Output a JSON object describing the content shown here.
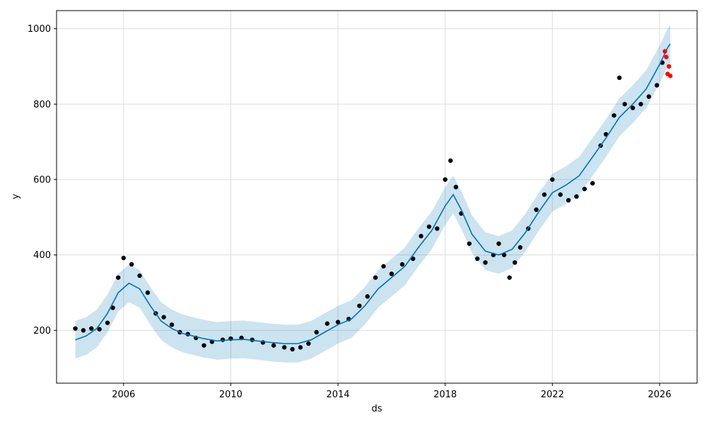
{
  "chart_data": {
    "type": "scatter",
    "title": "",
    "xlabel": "ds",
    "ylabel": "y",
    "grid": true,
    "xlim": [
      2003.5,
      2027.4
    ],
    "ylim": [
      60,
      1048
    ],
    "x_ticks": [
      2006,
      2010,
      2014,
      2018,
      2022,
      2026
    ],
    "x_tick_labels": [
      "2006",
      "2010",
      "2014",
      "2018",
      "2022",
      "2026"
    ],
    "y_ticks": [
      200,
      400,
      600,
      800,
      1000
    ],
    "y_tick_labels": [
      "200",
      "400",
      "600",
      "800",
      "1000"
    ],
    "colors": {
      "observed": "#000000",
      "holdout": "#ff0000",
      "forecast": "#0072b2",
      "interval": "#0072b2",
      "grid": "#dddddd"
    },
    "series": [
      {
        "kind": "observed_points",
        "points": [
          [
            2004.2,
            205
          ],
          [
            2004.5,
            200
          ],
          [
            2004.8,
            205
          ],
          [
            2005.1,
            203
          ],
          [
            2005.4,
            220
          ],
          [
            2005.6,
            260
          ],
          [
            2005.8,
            340
          ],
          [
            2006.0,
            392
          ],
          [
            2006.3,
            375
          ],
          [
            2006.6,
            345
          ],
          [
            2006.9,
            300
          ],
          [
            2007.2,
            245
          ],
          [
            2007.5,
            235
          ],
          [
            2007.8,
            215
          ],
          [
            2008.1,
            195
          ],
          [
            2008.4,
            190
          ],
          [
            2008.7,
            180
          ],
          [
            2009.0,
            160
          ],
          [
            2009.3,
            170
          ],
          [
            2009.7,
            175
          ],
          [
            2010.0,
            178
          ],
          [
            2010.4,
            180
          ],
          [
            2010.8,
            175
          ],
          [
            2011.2,
            168
          ],
          [
            2011.6,
            160
          ],
          [
            2012.0,
            155
          ],
          [
            2012.3,
            150
          ],
          [
            2012.6,
            155
          ],
          [
            2012.9,
            165
          ],
          [
            2013.2,
            195
          ],
          [
            2013.6,
            218
          ],
          [
            2014.0,
            222
          ],
          [
            2014.4,
            230
          ],
          [
            2014.8,
            265
          ],
          [
            2015.1,
            290
          ],
          [
            2015.4,
            340
          ],
          [
            2015.7,
            370
          ],
          [
            2016.0,
            350
          ],
          [
            2016.4,
            375
          ],
          [
            2016.8,
            390
          ],
          [
            2017.1,
            450
          ],
          [
            2017.4,
            475
          ],
          [
            2017.7,
            470
          ],
          [
            2018.0,
            600
          ],
          [
            2018.2,
            650
          ],
          [
            2018.4,
            580
          ],
          [
            2018.6,
            510
          ],
          [
            2018.9,
            430
          ],
          [
            2019.2,
            390
          ],
          [
            2019.5,
            380
          ],
          [
            2019.8,
            400
          ],
          [
            2020.0,
            430
          ],
          [
            2020.2,
            400
          ],
          [
            2020.4,
            340
          ],
          [
            2020.6,
            380
          ],
          [
            2020.8,
            420
          ],
          [
            2021.1,
            470
          ],
          [
            2021.4,
            520
          ],
          [
            2021.7,
            560
          ],
          [
            2022.0,
            600
          ],
          [
            2022.3,
            560
          ],
          [
            2022.6,
            545
          ],
          [
            2022.9,
            555
          ],
          [
            2023.2,
            575
          ],
          [
            2023.5,
            590
          ],
          [
            2023.8,
            690
          ],
          [
            2024.0,
            720
          ],
          [
            2024.3,
            770
          ],
          [
            2024.5,
            870
          ],
          [
            2024.7,
            800
          ],
          [
            2025.0,
            790
          ],
          [
            2025.3,
            800
          ],
          [
            2025.6,
            820
          ],
          [
            2025.9,
            850
          ],
          [
            2026.1,
            910
          ]
        ]
      },
      {
        "kind": "holdout_points",
        "points": [
          [
            2026.2,
            940
          ],
          [
            2026.25,
            925
          ],
          [
            2026.3,
            880
          ],
          [
            2026.35,
            900
          ],
          [
            2026.4,
            875
          ]
        ]
      },
      {
        "kind": "forecast_line",
        "points": [
          [
            2004.2,
            175
          ],
          [
            2004.6,
            185
          ],
          [
            2005.0,
            205
          ],
          [
            2005.4,
            245
          ],
          [
            2005.8,
            300
          ],
          [
            2006.2,
            325
          ],
          [
            2006.6,
            310
          ],
          [
            2007.0,
            265
          ],
          [
            2007.4,
            225
          ],
          [
            2007.8,
            205
          ],
          [
            2008.2,
            192
          ],
          [
            2008.6,
            185
          ],
          [
            2009.0,
            178
          ],
          [
            2009.5,
            172
          ],
          [
            2010.0,
            175
          ],
          [
            2010.5,
            176
          ],
          [
            2011.0,
            172
          ],
          [
            2011.5,
            168
          ],
          [
            2012.0,
            165
          ],
          [
            2012.5,
            165
          ],
          [
            2013.0,
            175
          ],
          [
            2013.5,
            195
          ],
          [
            2014.0,
            215
          ],
          [
            2014.5,
            230
          ],
          [
            2015.0,
            265
          ],
          [
            2015.5,
            310
          ],
          [
            2016.0,
            340
          ],
          [
            2016.5,
            370
          ],
          [
            2017.0,
            420
          ],
          [
            2017.5,
            465
          ],
          [
            2018.0,
            530
          ],
          [
            2018.3,
            560
          ],
          [
            2018.6,
            520
          ],
          [
            2019.0,
            455
          ],
          [
            2019.5,
            410
          ],
          [
            2020.0,
            400
          ],
          [
            2020.5,
            415
          ],
          [
            2021.0,
            460
          ],
          [
            2021.5,
            515
          ],
          [
            2022.0,
            565
          ],
          [
            2022.5,
            585
          ],
          [
            2023.0,
            610
          ],
          [
            2023.5,
            660
          ],
          [
            2024.0,
            710
          ],
          [
            2024.5,
            765
          ],
          [
            2025.0,
            800
          ],
          [
            2025.5,
            840
          ],
          [
            2026.0,
            905
          ],
          [
            2026.3,
            950
          ],
          [
            2026.4,
            960
          ]
        ]
      },
      {
        "kind": "uncertainty_band",
        "lower": [
          [
            2004.2,
            125
          ],
          [
            2004.6,
            135
          ],
          [
            2005.0,
            155
          ],
          [
            2005.4,
            195
          ],
          [
            2005.8,
            250
          ],
          [
            2006.2,
            275
          ],
          [
            2006.6,
            260
          ],
          [
            2007.0,
            215
          ],
          [
            2007.4,
            175
          ],
          [
            2007.8,
            155
          ],
          [
            2008.2,
            142
          ],
          [
            2008.6,
            135
          ],
          [
            2009.0,
            128
          ],
          [
            2009.5,
            122
          ],
          [
            2010.0,
            125
          ],
          [
            2010.5,
            126
          ],
          [
            2011.0,
            122
          ],
          [
            2011.5,
            118
          ],
          [
            2012.0,
            115
          ],
          [
            2012.5,
            115
          ],
          [
            2013.0,
            125
          ],
          [
            2013.5,
            145
          ],
          [
            2014.0,
            165
          ],
          [
            2014.5,
            180
          ],
          [
            2015.0,
            215
          ],
          [
            2015.5,
            260
          ],
          [
            2016.0,
            290
          ],
          [
            2016.5,
            320
          ],
          [
            2017.0,
            370
          ],
          [
            2017.5,
            415
          ],
          [
            2018.0,
            480
          ],
          [
            2018.3,
            510
          ],
          [
            2018.6,
            470
          ],
          [
            2019.0,
            405
          ],
          [
            2019.5,
            360
          ],
          [
            2020.0,
            350
          ],
          [
            2020.5,
            365
          ],
          [
            2021.0,
            410
          ],
          [
            2021.5,
            465
          ],
          [
            2022.0,
            515
          ],
          [
            2022.5,
            535
          ],
          [
            2023.0,
            560
          ],
          [
            2023.5,
            610
          ],
          [
            2024.0,
            660
          ],
          [
            2024.5,
            715
          ],
          [
            2025.0,
            750
          ],
          [
            2025.5,
            790
          ],
          [
            2026.0,
            855
          ],
          [
            2026.3,
            900
          ],
          [
            2026.4,
            910
          ]
        ],
        "upper": [
          [
            2004.2,
            225
          ],
          [
            2004.6,
            235
          ],
          [
            2005.0,
            255
          ],
          [
            2005.4,
            295
          ],
          [
            2005.8,
            350
          ],
          [
            2006.2,
            375
          ],
          [
            2006.6,
            360
          ],
          [
            2007.0,
            315
          ],
          [
            2007.4,
            275
          ],
          [
            2007.8,
            255
          ],
          [
            2008.2,
            242
          ],
          [
            2008.6,
            235
          ],
          [
            2009.0,
            228
          ],
          [
            2009.5,
            222
          ],
          [
            2010.0,
            225
          ],
          [
            2010.5,
            226
          ],
          [
            2011.0,
            222
          ],
          [
            2011.5,
            218
          ],
          [
            2012.0,
            215
          ],
          [
            2012.5,
            215
          ],
          [
            2013.0,
            225
          ],
          [
            2013.5,
            245
          ],
          [
            2014.0,
            265
          ],
          [
            2014.5,
            280
          ],
          [
            2015.0,
            315
          ],
          [
            2015.5,
            360
          ],
          [
            2016.0,
            390
          ],
          [
            2016.5,
            420
          ],
          [
            2017.0,
            470
          ],
          [
            2017.5,
            515
          ],
          [
            2018.0,
            580
          ],
          [
            2018.3,
            610
          ],
          [
            2018.6,
            570
          ],
          [
            2019.0,
            505
          ],
          [
            2019.5,
            460
          ],
          [
            2020.0,
            450
          ],
          [
            2020.5,
            465
          ],
          [
            2021.0,
            510
          ],
          [
            2021.5,
            565
          ],
          [
            2022.0,
            615
          ],
          [
            2022.5,
            635
          ],
          [
            2023.0,
            660
          ],
          [
            2023.5,
            710
          ],
          [
            2024.0,
            760
          ],
          [
            2024.5,
            815
          ],
          [
            2025.0,
            850
          ],
          [
            2025.5,
            890
          ],
          [
            2026.0,
            955
          ],
          [
            2026.3,
            1000
          ],
          [
            2026.4,
            1010
          ]
        ]
      }
    ]
  }
}
